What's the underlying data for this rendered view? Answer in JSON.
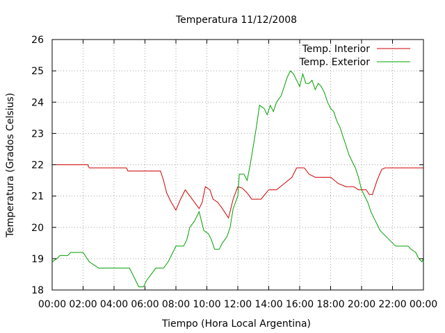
{
  "chart_data": {
    "type": "line",
    "title": "Temperatura 11/12/2008",
    "xlabel": "Tiempo (Hora Local Argentina)",
    "ylabel": "Temperatura (Grados Celsius)",
    "xlim": [
      0,
      24
    ],
    "ylim": [
      18,
      26
    ],
    "xticks": [
      {
        "v": 0,
        "label": "00:00"
      },
      {
        "v": 2,
        "label": "02:00"
      },
      {
        "v": 4,
        "label": "04:00"
      },
      {
        "v": 6,
        "label": "06:00"
      },
      {
        "v": 8,
        "label": "08:00"
      },
      {
        "v": 10,
        "label": "10:00"
      },
      {
        "v": 12,
        "label": "12:00"
      },
      {
        "v": 14,
        "label": "14:00"
      },
      {
        "v": 16,
        "label": "16:00"
      },
      {
        "v": 18,
        "label": "18:00"
      },
      {
        "v": 20,
        "label": "20:00"
      },
      {
        "v": 22,
        "label": "22:00"
      },
      {
        "v": 24,
        "label": "00:00"
      }
    ],
    "yticks": [
      {
        "v": 18,
        "label": "18"
      },
      {
        "v": 19,
        "label": "19"
      },
      {
        "v": 20,
        "label": "20"
      },
      {
        "v": 21,
        "label": "21"
      },
      {
        "v": 22,
        "label": "22"
      },
      {
        "v": 23,
        "label": "23"
      },
      {
        "v": 24,
        "label": "24"
      },
      {
        "v": 25,
        "label": "25"
      },
      {
        "v": 26,
        "label": "26"
      }
    ],
    "grid": true,
    "legend_position": "top-right",
    "series": [
      {
        "name": "Temp. Interior",
        "color": "#cc0000",
        "points": [
          [
            0,
            22.0
          ],
          [
            2.3,
            22.0
          ],
          [
            2.4,
            21.9
          ],
          [
            4.8,
            21.9
          ],
          [
            4.9,
            21.8
          ],
          [
            7.0,
            21.8
          ],
          [
            7.2,
            21.5
          ],
          [
            7.4,
            21.1
          ],
          [
            7.7,
            20.8
          ],
          [
            8.0,
            20.55
          ],
          [
            8.3,
            20.9
          ],
          [
            8.6,
            21.2
          ],
          [
            8.9,
            21.0
          ],
          [
            9.2,
            20.8
          ],
          [
            9.5,
            20.6
          ],
          [
            9.7,
            20.8
          ],
          [
            9.9,
            21.3
          ],
          [
            10.2,
            21.2
          ],
          [
            10.4,
            20.9
          ],
          [
            10.7,
            20.8
          ],
          [
            11.0,
            20.6
          ],
          [
            11.4,
            20.3
          ],
          [
            11.7,
            20.9
          ],
          [
            12.0,
            21.3
          ],
          [
            12.3,
            21.25
          ],
          [
            12.6,
            21.1
          ],
          [
            12.9,
            20.9
          ],
          [
            13.5,
            20.9
          ],
          [
            14.0,
            21.2
          ],
          [
            14.5,
            21.2
          ],
          [
            15.0,
            21.4
          ],
          [
            15.5,
            21.6
          ],
          [
            15.8,
            21.9
          ],
          [
            16.3,
            21.9
          ],
          [
            16.6,
            21.7
          ],
          [
            17.0,
            21.6
          ],
          [
            18.0,
            21.6
          ],
          [
            18.5,
            21.4
          ],
          [
            19.0,
            21.3
          ],
          [
            19.5,
            21.3
          ],
          [
            19.8,
            21.2
          ],
          [
            20.3,
            21.2
          ],
          [
            20.5,
            21.05
          ],
          [
            20.7,
            21.05
          ],
          [
            21.0,
            21.5
          ],
          [
            21.3,
            21.85
          ],
          [
            21.5,
            21.9
          ],
          [
            24.0,
            21.9
          ]
        ]
      },
      {
        "name": "Temp. Exterior",
        "color": "#00a000",
        "points": [
          [
            0,
            18.9
          ],
          [
            0.3,
            19.0
          ],
          [
            0.5,
            19.1
          ],
          [
            1.0,
            19.1
          ],
          [
            1.2,
            19.2
          ],
          [
            2.0,
            19.2
          ],
          [
            2.2,
            19.05
          ],
          [
            2.4,
            18.9
          ],
          [
            2.7,
            18.8
          ],
          [
            3.0,
            18.7
          ],
          [
            4.5,
            18.7
          ],
          [
            5.0,
            18.7
          ],
          [
            5.2,
            18.5
          ],
          [
            5.4,
            18.3
          ],
          [
            5.6,
            18.1
          ],
          [
            5.9,
            18.1
          ],
          [
            6.1,
            18.3
          ],
          [
            6.4,
            18.5
          ],
          [
            6.7,
            18.7
          ],
          [
            7.2,
            18.7
          ],
          [
            7.5,
            18.9
          ],
          [
            7.8,
            19.2
          ],
          [
            8.0,
            19.4
          ],
          [
            8.5,
            19.4
          ],
          [
            8.7,
            19.6
          ],
          [
            8.9,
            20.0
          ],
          [
            9.2,
            20.2
          ],
          [
            9.5,
            20.5
          ],
          [
            9.8,
            19.9
          ],
          [
            10.1,
            19.8
          ],
          [
            10.3,
            19.6
          ],
          [
            10.5,
            19.3
          ],
          [
            10.8,
            19.3
          ],
          [
            11.0,
            19.5
          ],
          [
            11.3,
            19.7
          ],
          [
            11.5,
            20.0
          ],
          [
            11.7,
            20.6
          ],
          [
            12.0,
            21.0
          ],
          [
            12.1,
            21.7
          ],
          [
            12.4,
            21.7
          ],
          [
            12.6,
            21.5
          ],
          [
            12.8,
            22.0
          ],
          [
            13.0,
            22.6
          ],
          [
            13.2,
            23.2
          ],
          [
            13.4,
            23.9
          ],
          [
            13.7,
            23.8
          ],
          [
            13.9,
            23.6
          ],
          [
            14.1,
            23.9
          ],
          [
            14.3,
            23.7
          ],
          [
            14.5,
            24.0
          ],
          [
            14.8,
            24.2
          ],
          [
            15.0,
            24.5
          ],
          [
            15.2,
            24.8
          ],
          [
            15.4,
            25.0
          ],
          [
            15.6,
            24.9
          ],
          [
            15.8,
            24.7
          ],
          [
            16.0,
            24.5
          ],
          [
            16.2,
            24.9
          ],
          [
            16.4,
            24.6
          ],
          [
            16.6,
            24.6
          ],
          [
            16.8,
            24.7
          ],
          [
            17.0,
            24.4
          ],
          [
            17.2,
            24.6
          ],
          [
            17.4,
            24.5
          ],
          [
            17.6,
            24.3
          ],
          [
            17.8,
            24.0
          ],
          [
            18.0,
            23.8
          ],
          [
            18.2,
            23.7
          ],
          [
            18.4,
            23.4
          ],
          [
            18.6,
            23.2
          ],
          [
            18.8,
            22.9
          ],
          [
            19.0,
            22.6
          ],
          [
            19.2,
            22.3
          ],
          [
            19.4,
            22.1
          ],
          [
            19.6,
            21.9
          ],
          [
            19.8,
            21.6
          ],
          [
            20.0,
            21.2
          ],
          [
            20.2,
            21.0
          ],
          [
            20.4,
            20.8
          ],
          [
            20.6,
            20.5
          ],
          [
            20.8,
            20.3
          ],
          [
            21.0,
            20.1
          ],
          [
            21.2,
            19.9
          ],
          [
            21.4,
            19.8
          ],
          [
            21.6,
            19.7
          ],
          [
            21.8,
            19.6
          ],
          [
            22.0,
            19.5
          ],
          [
            22.2,
            19.4
          ],
          [
            23.0,
            19.4
          ],
          [
            23.2,
            19.3
          ],
          [
            23.5,
            19.2
          ],
          [
            23.7,
            19.0
          ],
          [
            23.9,
            18.9
          ],
          [
            24.0,
            19.0
          ]
        ]
      }
    ]
  }
}
